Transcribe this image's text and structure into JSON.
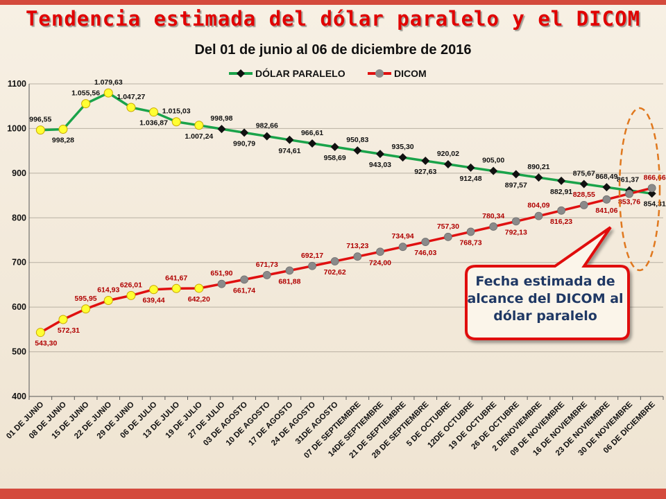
{
  "slide": {
    "title": "Tendencia estimada del dólar paralelo y el DICOM",
    "subtitle": "Del 01 de junio al 06 de diciembre de 2016",
    "callout": "Fecha estimada de alcance del DICOM al dólar paralelo"
  },
  "colors": {
    "paralelo": "#1aa34a",
    "dicom": "#e01010",
    "marker_highlight": "#ffff33",
    "marker_paralelo": "#111111",
    "marker_dicom": "#8a8a8a",
    "callout_border": "#e01010",
    "ellipse": "#e0781e"
  },
  "chart_data": {
    "type": "line",
    "title": "Tendencia estimada del dólar paralelo y el DICOM",
    "subtitle": "Del 01 de junio al 06 de diciembre de 2016",
    "xlabel": "",
    "ylabel": "",
    "ylim": [
      400,
      1100
    ],
    "yticks": [
      "400",
      "500",
      "600",
      "700",
      "800",
      "900",
      "1000",
      "1100"
    ],
    "grid": true,
    "legend": "top-center",
    "categories": [
      "01 DE JUNIO",
      "08 DE JUNIO",
      "15 DE JUNIO",
      "22 DE JUNIO",
      "29 DE JUNIO",
      "06 DE JULIO",
      "13 DE JULIO",
      "19 DE JULIO",
      "27 DE JULIO",
      "03 DE AGOSTO",
      "10 DE AGOSTO",
      "17 DE AGOSTO",
      "24 DE AGOSTO",
      "31DE AGOSTO",
      "07 DE SEPTIEMBRE",
      "14DE SEPTIEMBRE",
      "21 DE SEPTIEMBRE",
      "28 DE SEPTIEMBRE",
      "5 DE OCTUBRE",
      "12DE OCTUBRE",
      "19 DE OCTUBRE",
      "26 DE OCTUBRE",
      "2 DENOVIEMBRE",
      "09 DE NOVIEMBRE",
      "16 DE NOVIEMBRE",
      "23 DE NOVIEMBRE",
      "30 DE NOVIEMBRE",
      "06 DE DICIEMBRE"
    ],
    "series": [
      {
        "name": "DÓLAR PARALELO",
        "values": [
          996.55,
          998.28,
          1055.56,
          1079.63,
          1047.27,
          1036.87,
          1015.03,
          1007.24,
          998.98,
          990.79,
          982.66,
          974.61,
          966.61,
          958.69,
          950.83,
          943.03,
          935.3,
          927.63,
          920.02,
          912.48,
          905.0,
          897.57,
          890.21,
          882.91,
          875.67,
          868.49,
          861.37,
          854.31
        ],
        "labels": [
          "996,55",
          "998,28",
          "1.055,56",
          "1.079,63",
          "1.047,27",
          "1.036,87",
          "1.015,03",
          "1.007,24",
          "998,98",
          "990,79",
          "982,66",
          "974,61",
          "966,61",
          "958,69",
          "950,83",
          "943,03",
          "935,30",
          "927,63",
          "920,02",
          "912,48",
          "905,00",
          "897,57",
          "890,21",
          "882,91",
          "875,67",
          "868,49",
          "861,37",
          "854,31"
        ]
      },
      {
        "name": "DICOM",
        "values": [
          543.3,
          572.31,
          595.95,
          614.93,
          626.01,
          639.44,
          641.67,
          642.2,
          651.9,
          661.74,
          671.73,
          681.88,
          692.17,
          702.62,
          713.23,
          724.0,
          734.94,
          746.03,
          757.3,
          768.73,
          780.34,
          792.13,
          804.09,
          816.23,
          828.55,
          841.06,
          853.76,
          866.66
        ],
        "labels": [
          "543,30",
          "572,31",
          "595,95",
          "614,93",
          "626,01",
          "639,44",
          "641,67",
          "642,20",
          "651,90",
          "661,74",
          "671,73",
          "681,88",
          "692,17",
          "702,62",
          "713,23",
          "724,00",
          "734,94",
          "746,03",
          "757,30",
          "768,73",
          "780,34",
          "792,13",
          "804,09",
          "816,23",
          "828,55",
          "841,06",
          "853,76",
          "866,66"
        ]
      }
    ]
  }
}
